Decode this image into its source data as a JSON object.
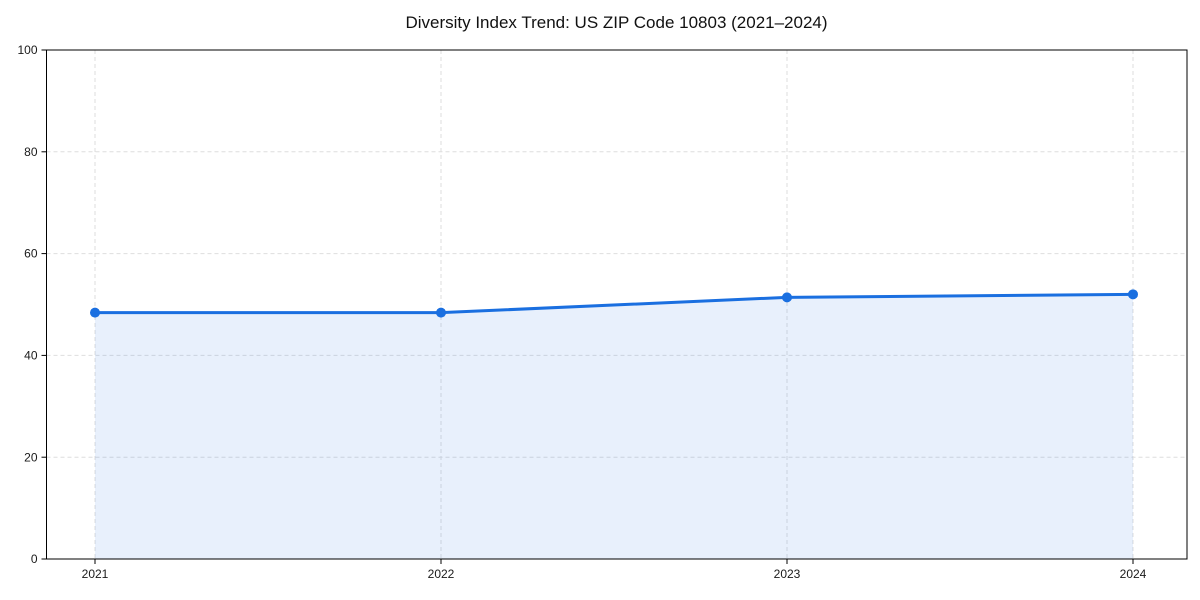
{
  "page": {
    "background_color": "#ffffff"
  },
  "chart_data": {
    "type": "line",
    "title": "Diversity Index Trend: US ZIP Code 10803 (2021–2024)",
    "categories": [
      "2021",
      "2022",
      "2023",
      "2024"
    ],
    "series": [
      {
        "name": "Diversity Index",
        "values": [
          48.4,
          48.4,
          51.4,
          52.0
        ]
      }
    ],
    "xlabel": "",
    "ylabel": "",
    "ylim": [
      0,
      100
    ],
    "yticks": [
      0,
      20,
      40,
      60,
      80,
      100
    ],
    "grid": true,
    "grid_style": "dashed",
    "legend_position": "none",
    "line_color": "#1a6fe0",
    "marker_color": "#1a6fe0",
    "marker_shape": "circle",
    "area_fill": true,
    "fill_opacity": 0.1,
    "grid_color": "#dedede",
    "axis_color": "#000000",
    "tick_label_color": "#1a1a1a",
    "title_color": "#111111"
  }
}
